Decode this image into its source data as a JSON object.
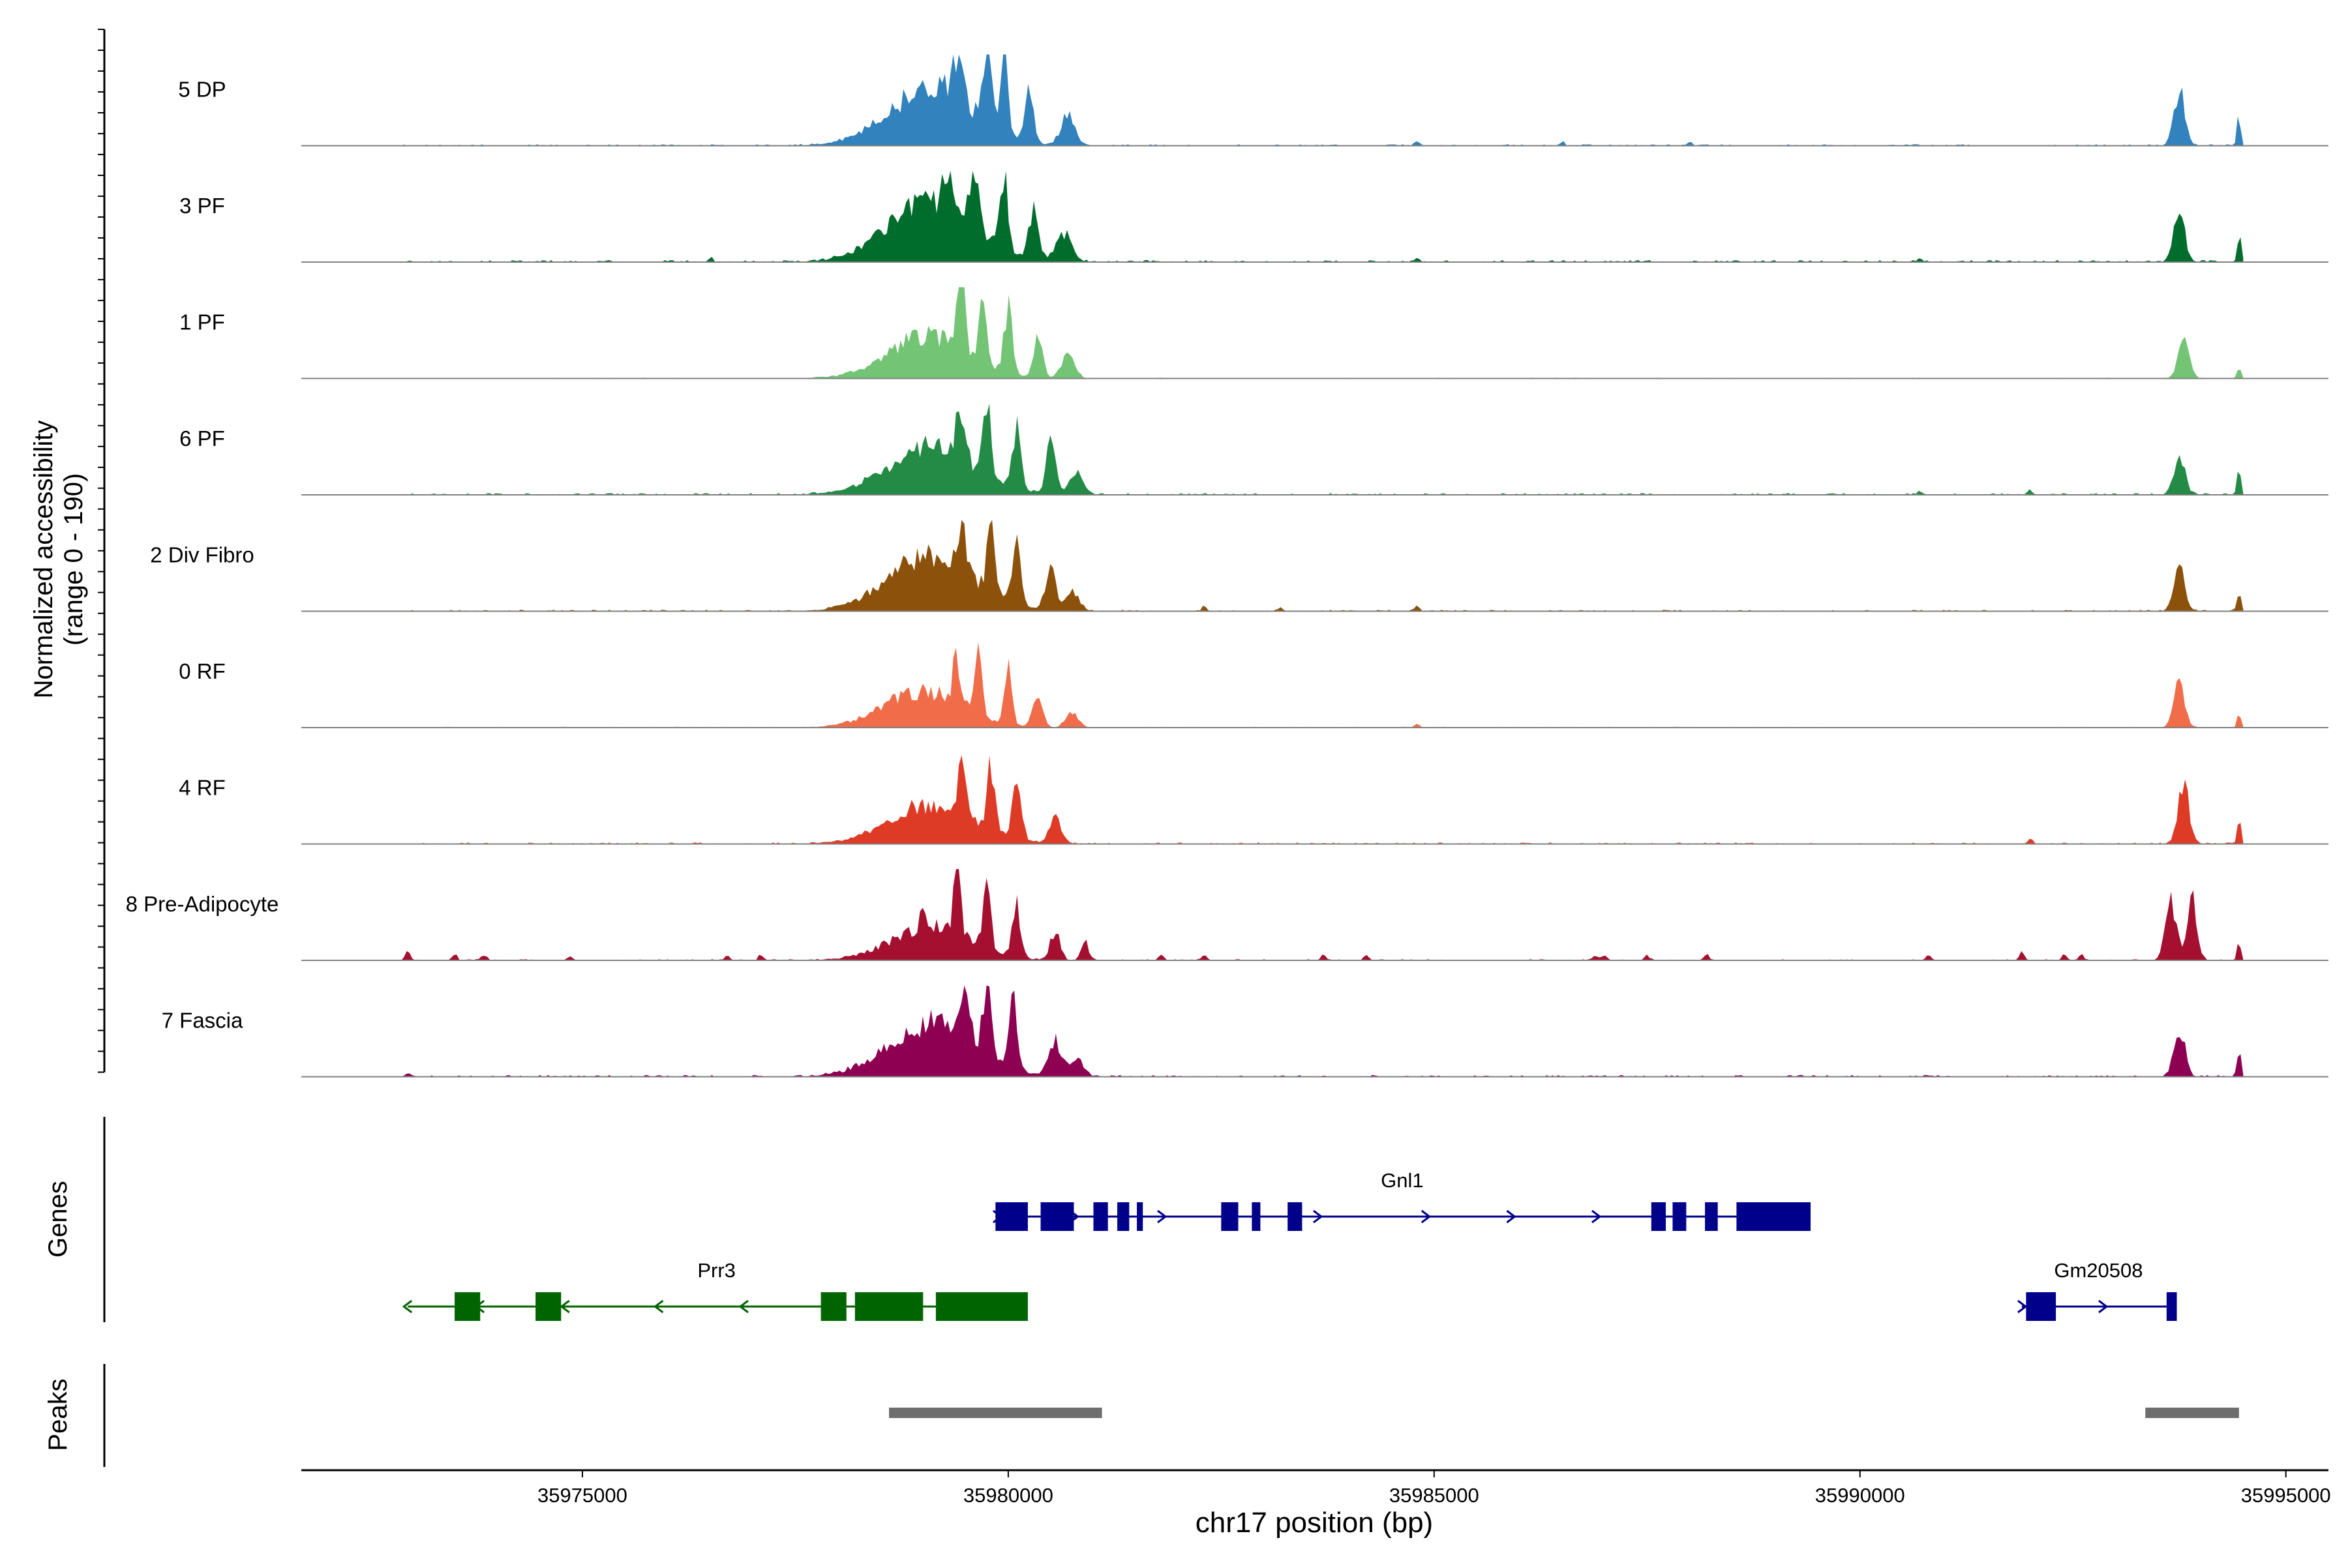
{
  "chart_data": {
    "type": "area",
    "title": "",
    "ylabel_line1": "Normalized accessibility",
    "ylabel_line2": "(range 0 - 190)",
    "xlabel": "chr17 position (bp)",
    "xlim": [
      35971700,
      35995500
    ],
    "xticks": [
      35975000,
      35980000,
      35985000,
      35990000,
      35995000
    ],
    "xtick_labels": [
      "35975000",
      "35980000",
      "35985000",
      "35990000",
      "35995000"
    ],
    "ylim": [
      0,
      190
    ],
    "coverage_end": 35994500,
    "tracks": [
      {
        "name": "5 DP",
        "color": "#3182BD",
        "seed": 11,
        "ambient": 0.05,
        "peaks": [
          [
            35979100,
            120,
            700
          ],
          [
            35979400,
            95,
            80
          ],
          [
            35979750,
            150,
            70
          ],
          [
            35979950,
            165,
            60
          ],
          [
            35980250,
            110,
            70
          ],
          [
            35980700,
            60,
            120
          ],
          [
            35993750,
            115,
            90
          ],
          [
            35994450,
            65,
            30
          ]
        ],
        "minis": [
          [
            35984800,
            10
          ],
          [
            35986500,
            8
          ],
          [
            35988000,
            8
          ]
        ]
      },
      {
        "name": "3 PF",
        "color": "#006D2C",
        "seed": 23,
        "ambient": 0.07,
        "peaks": [
          [
            35979100,
            125,
            700
          ],
          [
            35979300,
            105,
            80
          ],
          [
            35979600,
            130,
            70
          ],
          [
            35979950,
            165,
            60
          ],
          [
            35980300,
            100,
            80
          ],
          [
            35980650,
            60,
            130
          ],
          [
            35993750,
            105,
            90
          ],
          [
            35994450,
            60,
            30
          ]
        ],
        "minis": [
          [
            35976500,
            8
          ],
          [
            35984800,
            9
          ],
          [
            35990700,
            8
          ]
        ]
      },
      {
        "name": "1 PF",
        "color": "#74C476",
        "seed": 37,
        "ambient": 0.03,
        "peaks": [
          [
            35979050,
            90,
            650
          ],
          [
            35979450,
            175,
            60
          ],
          [
            35979700,
            145,
            60
          ],
          [
            35980000,
            130,
            70
          ],
          [
            35980350,
            95,
            70
          ],
          [
            35980700,
            45,
            110
          ],
          [
            35993800,
            85,
            90
          ],
          [
            35994450,
            25,
            30
          ]
        ],
        "minis": []
      },
      {
        "name": "6 PF",
        "color": "#238B45",
        "seed": 41,
        "ambient": 0.06,
        "peaks": [
          [
            35979100,
            100,
            700
          ],
          [
            35979450,
            120,
            70
          ],
          [
            35979750,
            165,
            60
          ],
          [
            35980100,
            125,
            70
          ],
          [
            35980500,
            100,
            80
          ],
          [
            35980800,
            45,
            110
          ],
          [
            35993750,
            80,
            90
          ],
          [
            35994450,
            50,
            30
          ]
        ],
        "minis": [
          [
            35992000,
            8
          ],
          [
            35990700,
            7
          ]
        ]
      },
      {
        "name": "2 Div Fibro",
        "color": "#8C510A",
        "seed": 53,
        "ambient": 0.05,
        "peaks": [
          [
            35979100,
            115,
            700
          ],
          [
            35979450,
            110,
            70
          ],
          [
            35979800,
            170,
            60
          ],
          [
            35980100,
            135,
            70
          ],
          [
            35980500,
            80,
            90
          ],
          [
            35980750,
            40,
            110
          ],
          [
            35993750,
            90,
            90
          ],
          [
            35994450,
            45,
            30
          ]
        ],
        "minis": [
          [
            35984800,
            12
          ],
          [
            35982300,
            8
          ],
          [
            35983200,
            7
          ]
        ]
      },
      {
        "name": "0 RF",
        "color": "#F16D4A",
        "seed": 67,
        "ambient": 0.03,
        "peaks": [
          [
            35979000,
            75,
            650
          ],
          [
            35979400,
            90,
            70
          ],
          [
            35979650,
            120,
            60
          ],
          [
            35980000,
            130,
            60
          ],
          [
            35980350,
            70,
            80
          ],
          [
            35980750,
            35,
            100
          ],
          [
            35993750,
            90,
            90
          ],
          [
            35994450,
            35,
            30
          ]
        ],
        "minis": [
          [
            35984800,
            8
          ]
        ]
      },
      {
        "name": "4 RF",
        "color": "#DE3B26",
        "seed": 79,
        "ambient": 0.05,
        "peaks": [
          [
            35979100,
            80,
            700
          ],
          [
            35979450,
            100,
            70
          ],
          [
            35979800,
            140,
            60
          ],
          [
            35980100,
            100,
            80
          ],
          [
            35980550,
            60,
            90
          ],
          [
            35993800,
            120,
            90
          ],
          [
            35994450,
            50,
            30
          ]
        ],
        "minis": [
          [
            35992000,
            12
          ]
        ]
      },
      {
        "name": "8 Pre-Adipocyte",
        "color": "#A50F30",
        "seed": 89,
        "ambient": 0.04,
        "peaks": [
          [
            35979100,
            70,
            650
          ],
          [
            35979400,
            120,
            60
          ],
          [
            35979750,
            135,
            60
          ],
          [
            35980100,
            105,
            70
          ],
          [
            35980550,
            60,
            80
          ],
          [
            35980900,
            40,
            60
          ],
          [
            35993650,
            120,
            90
          ],
          [
            35993900,
            135,
            80
          ],
          [
            35994450,
            35,
            30
          ]
        ],
        "minis": [
          [
            35972950,
            20
          ],
          [
            35973500,
            12
          ],
          [
            35973850,
            12
          ],
          [
            35974850,
            10
          ],
          [
            35976700,
            10
          ],
          [
            35977100,
            12
          ],
          [
            35979000,
            40
          ],
          [
            35981800,
            10
          ],
          [
            35982300,
            10
          ],
          [
            35983700,
            12
          ],
          [
            35984200,
            10
          ],
          [
            35986900,
            10
          ],
          [
            35987000,
            10
          ],
          [
            35987500,
            10
          ],
          [
            35988200,
            14
          ],
          [
            35990800,
            12
          ],
          [
            35991900,
            18
          ],
          [
            35992400,
            12
          ],
          [
            35992600,
            12
          ]
        ]
      },
      {
        "name": "7 Fascia",
        "color": "#8E0152",
        "seed": 97,
        "ambient": 0.06,
        "peaks": [
          [
            35979100,
            110,
            700
          ],
          [
            35979500,
            130,
            70
          ],
          [
            35979750,
            175,
            60
          ],
          [
            35980050,
            145,
            70
          ],
          [
            35980550,
            75,
            100
          ],
          [
            35980800,
            40,
            110
          ],
          [
            35993750,
            105,
            90
          ],
          [
            35994450,
            55,
            30
          ]
        ],
        "minis": [
          [
            35972950,
            8
          ]
        ]
      }
    ],
    "genes": [
      {
        "name": "Gnl1",
        "strand": "+",
        "color": "#00008B",
        "start": 35979850,
        "end": 35989400,
        "row": 1,
        "exons": [
          [
            35979850,
            35980230
          ],
          [
            35980380,
            35980770
          ],
          [
            35981000,
            35981170
          ],
          [
            35981280,
            35981420
          ],
          [
            35981510,
            35981580
          ],
          [
            35982500,
            35982700
          ],
          [
            35982860,
            35982960
          ],
          [
            35983280,
            35983450
          ],
          [
            35987550,
            35987720
          ],
          [
            35987800,
            35987960
          ],
          [
            35988180,
            35988330
          ],
          [
            35988550,
            35989420
          ]
        ],
        "arrows": [
          35979870,
          35980770,
          35981800,
          35983630,
          35984900,
          35985900,
          35986900
        ]
      },
      {
        "name": "Prr3",
        "strand": "-",
        "color": "#006400",
        "start": 35972950,
        "end": 35980200,
        "row": 2,
        "exons": [
          [
            35973500,
            35973800
          ],
          [
            35974450,
            35974750
          ],
          [
            35977800,
            35978100
          ],
          [
            35978200,
            35979000
          ],
          [
            35979150,
            35980230
          ]
        ],
        "arrows": [
          35972950,
          35973800,
          35974800,
          35975900,
          35976900
        ]
      },
      {
        "name": "Gm20508",
        "strand": "+",
        "color": "#00008B",
        "start": 35991900,
        "end": 35993700,
        "row": 2,
        "exons": [
          [
            35991950,
            35992300
          ],
          [
            35993600,
            35993720
          ]
        ],
        "arrows": [
          35991900,
          35992850
        ]
      }
    ],
    "peaks": [
      [
        35978600,
        35981100
      ],
      [
        35993350,
        35994450
      ]
    ],
    "gene_panel_label": "Genes",
    "peak_panel_label": "Peaks"
  }
}
